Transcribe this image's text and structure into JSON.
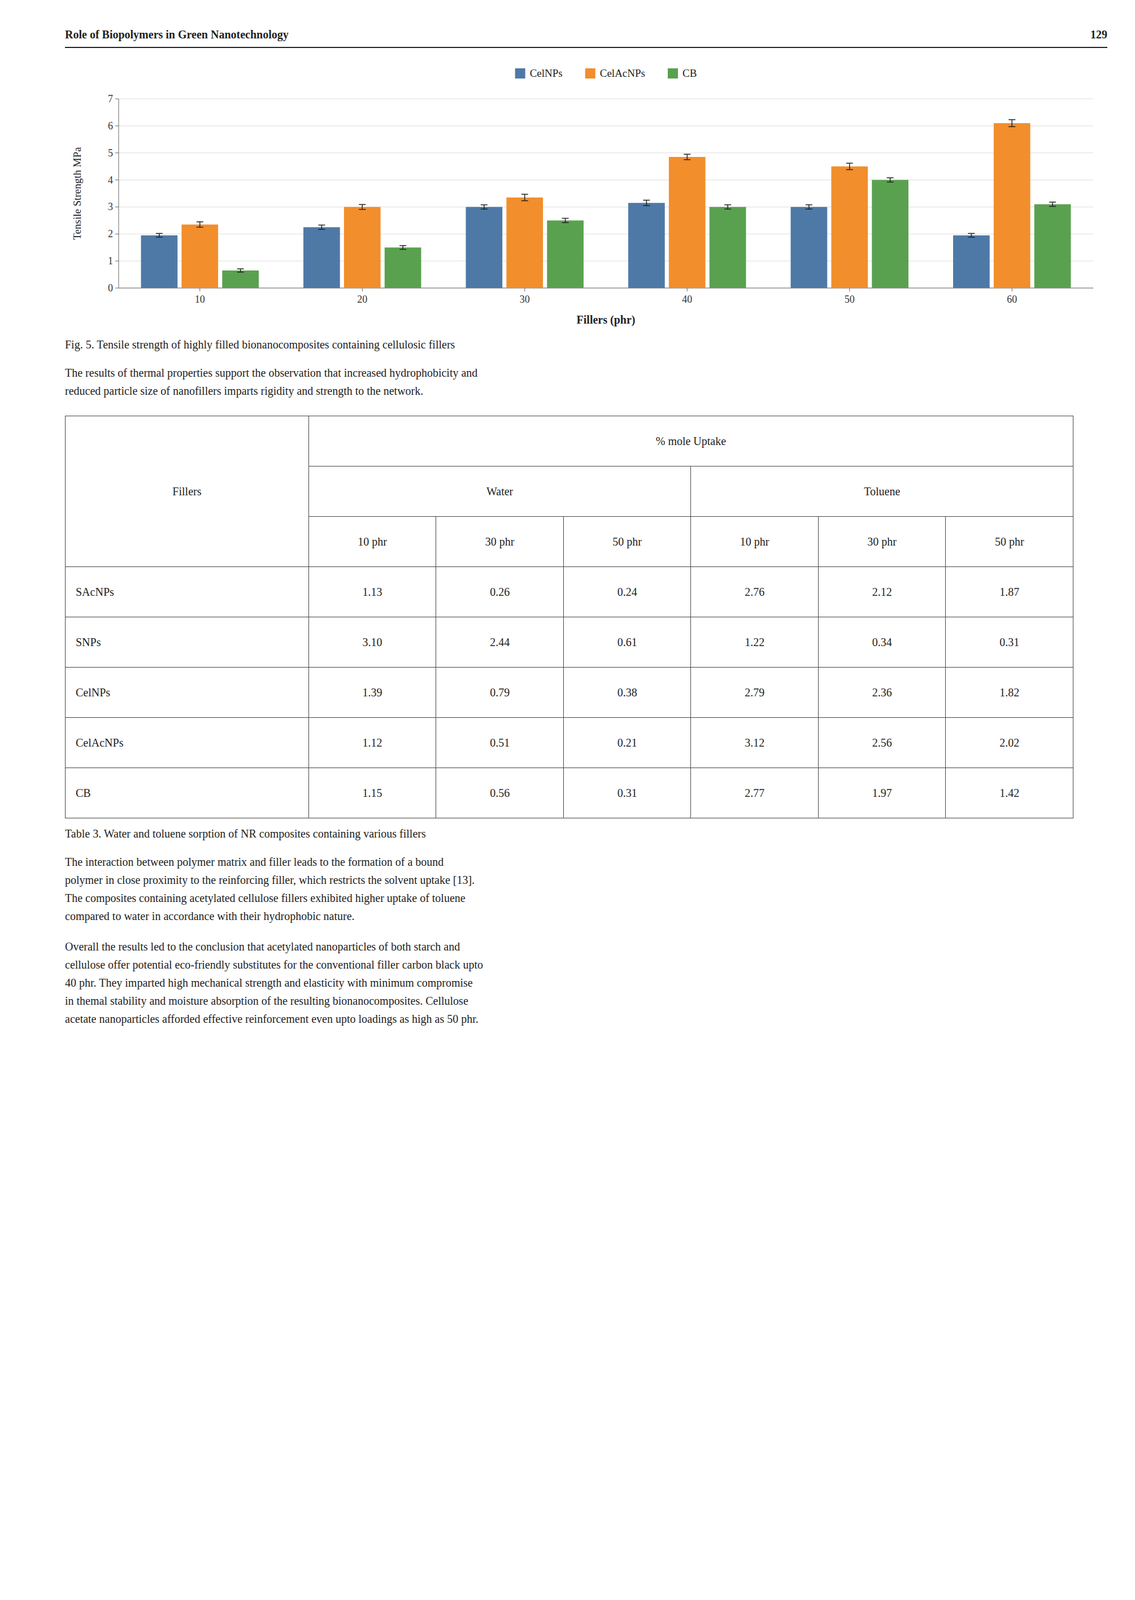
{
  "chart_data": {
    "type": "bar",
    "title": "Fig. 5. Tensile strength of highly filled bionanocomposites containing cellulosic fillers",
    "xlabel": "Fillers (phr)",
    "ylabel": "Tensile Strength MPa",
    "categories": [
      "10",
      "20",
      "30",
      "40",
      "50",
      "60"
    ],
    "series": [
      {
        "name": "CelNPs",
        "values": [
          1.95,
          2.25,
          3.0,
          3.15,
          3.0,
          1.95
        ],
        "errors": [
          0.07,
          0.08,
          0.08,
          0.1,
          0.08,
          0.07
        ]
      },
      {
        "name": "CelAcNPs",
        "values": [
          2.35,
          3.0,
          3.35,
          4.85,
          4.5,
          6.1
        ],
        "errors": [
          0.1,
          0.09,
          0.12,
          0.1,
          0.12,
          0.13
        ]
      },
      {
        "name": "CB",
        "values": [
          0.65,
          1.5,
          2.5,
          3.0,
          4.0,
          3.1
        ],
        "errors": [
          0.06,
          0.07,
          0.08,
          0.08,
          0.08,
          0.08
        ]
      }
    ],
    "ylim": [
      0,
      7
    ],
    "yticks": [
      0,
      1,
      2,
      3,
      4,
      5,
      6,
      7
    ],
    "grid": true,
    "legend": "top"
  },
  "page": {
    "header_left": "Role of Biopolymers in Green Nanotechnology",
    "header_right": "129",
    "para1": [
      "The results of thermal properties support the observation that increased hydrophobicity and",
      "reduced particle size of nanofillers imparts rigidity and strength to the network."
    ],
    "table": {
      "corner": "Fillers",
      "group_header": "% mole Uptake",
      "groups": [
        "Water",
        "Toluene"
      ],
      "subheaders": [
        "10 phr",
        "30 phr",
        "50 phr",
        "10 phr",
        "30 phr",
        "50 phr"
      ],
      "rows": [
        [
          "SAcNPs",
          "1.13",
          "0.26",
          "0.24",
          "2.76",
          "2.12",
          "1.87"
        ],
        [
          "SNPs",
          "3.10",
          "2.44",
          "0.61",
          "1.22",
          "0.34",
          "0.31"
        ],
        [
          "CelNPs",
          "1.39",
          "0.79",
          "0.38",
          "2.79",
          "2.36",
          "1.82"
        ],
        [
          "CelAcNPs",
          "1.12",
          "0.51",
          "0.21",
          "3.12",
          "2.56",
          "2.02"
        ],
        [
          "CB",
          "1.15",
          "0.56",
          "0.31",
          "2.77",
          "1.97",
          "1.42"
        ]
      ]
    },
    "table_title": "Table 3. Water and toluene sorption of NR composites containing various fillers",
    "para2": [
      "The interaction between polymer matrix and filler leads to the formation of a bound",
      "polymer in close proximity to the reinforcing filler, which restricts the solvent uptake [13].",
      "The composites containing acetylated cellulose fillers exhibited higher uptake of toluene",
      "compared to water in accordance with their hydrophobic nature."
    ],
    "para3": [
      "Overall the results led to the conclusion that acetylated nanoparticles of both starch and",
      "cellulose offer potential eco-friendly substitutes for the conventional filler carbon black upto",
      "40 phr. They imparted high mechanical strength and elasticity with minimum compromise",
      "in themal stability and moisture absorption of the resulting bionanocomposites. Cellulose",
      "acetate nanoparticles afforded effective reinforcement even upto loadings as high as 50 phr."
    ]
  }
}
